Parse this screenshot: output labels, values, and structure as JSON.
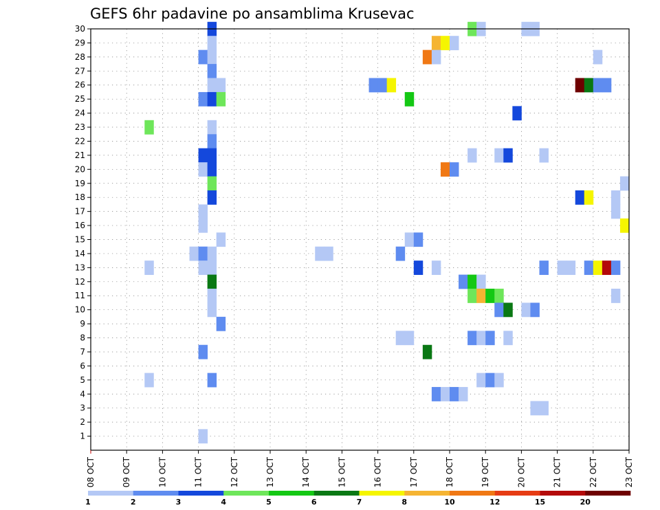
{
  "chart_data": {
    "type": "heatmap",
    "title": "GEFS 6hr padavine po ansamblima Krusevac",
    "x_start": "2014-10-08",
    "x_end": "2014-10-23",
    "x_tick_labels": [
      "08 OCT",
      "09 OCT",
      "10 OCT",
      "11 OCT",
      "12 OCT",
      "13 OCT",
      "14 OCT",
      "15 OCT",
      "16 OCT",
      "17 OCT",
      "18 OCT",
      "19 OCT",
      "20 OCT",
      "21 OCT",
      "22 OCT",
      "23 OCT"
    ],
    "y_tick_labels": [
      "1",
      "2",
      "3",
      "4",
      "5",
      "6",
      "7",
      "8",
      "9",
      "10",
      "11",
      "12",
      "13",
      "14",
      "15",
      "16",
      "17",
      "18",
      "19",
      "20",
      "21",
      "22",
      "23",
      "24",
      "25",
      "26",
      "27",
      "28",
      "29",
      "30"
    ],
    "ylim": [
      0,
      30
    ],
    "grid": true,
    "colorbar": {
      "labels": [
        "1",
        "2",
        "3",
        "4",
        "5",
        "6",
        "7",
        "8",
        "10",
        "12",
        "15",
        "20"
      ],
      "colors": [
        "#b4c8f5",
        "#5f8cf0",
        "#1448dc",
        "#6ee65a",
        "#14c814",
        "#0a7814",
        "#f5f500",
        "#f5b432",
        "#f07814",
        "#e63c14",
        "#b40a0a",
        "#6e0000"
      ]
    },
    "cells": [
      {
        "member": 30,
        "date": "11.06",
        "value": 3
      },
      {
        "member": 30,
        "date": "18.12",
        "value": 4
      },
      {
        "member": 30,
        "date": "18.18",
        "value": 1
      },
      {
        "member": 30,
        "date": "20.00",
        "value": 1
      },
      {
        "member": 30,
        "date": "20.06",
        "value": 1
      },
      {
        "member": 29,
        "date": "11.06",
        "value": 1
      },
      {
        "member": 29,
        "date": "17.12",
        "value": 8
      },
      {
        "member": 29,
        "date": "17.18",
        "value": 7
      },
      {
        "member": 29,
        "date": "18.00",
        "value": 1
      },
      {
        "member": 28,
        "date": "11.00",
        "value": 2
      },
      {
        "member": 28,
        "date": "11.06",
        "value": 1
      },
      {
        "member": 28,
        "date": "17.06",
        "value": 10
      },
      {
        "member": 28,
        "date": "17.12",
        "value": 1
      },
      {
        "member": 28,
        "date": "22.00",
        "value": 1
      },
      {
        "member": 27,
        "date": "11.06",
        "value": 2
      },
      {
        "member": 26,
        "date": "11.06",
        "value": 1
      },
      {
        "member": 26,
        "date": "11.12",
        "value": 1
      },
      {
        "member": 26,
        "date": "15.18",
        "value": 2
      },
      {
        "member": 26,
        "date": "16.00",
        "value": 2
      },
      {
        "member": 26,
        "date": "16.06",
        "value": 7
      },
      {
        "member": 26,
        "date": "21.12",
        "value": 20
      },
      {
        "member": 26,
        "date": "21.18",
        "value": 6
      },
      {
        "member": 26,
        "date": "22.00",
        "value": 2
      },
      {
        "member": 26,
        "date": "22.06",
        "value": 2
      },
      {
        "member": 25,
        "date": "11.00",
        "value": 2
      },
      {
        "member": 25,
        "date": "11.06",
        "value": 3
      },
      {
        "member": 25,
        "date": "11.12",
        "value": 4
      },
      {
        "member": 25,
        "date": "16.18",
        "value": 5
      },
      {
        "member": 24,
        "date": "19.18",
        "value": 3
      },
      {
        "member": 23,
        "date": "09.12",
        "value": 4
      },
      {
        "member": 23,
        "date": "11.06",
        "value": 1
      },
      {
        "member": 22,
        "date": "11.06",
        "value": 2
      },
      {
        "member": 21,
        "date": "11.00",
        "value": 3
      },
      {
        "member": 21,
        "date": "11.06",
        "value": 3
      },
      {
        "member": 21,
        "date": "18.12",
        "value": 1
      },
      {
        "member": 21,
        "date": "19.06",
        "value": 1
      },
      {
        "member": 21,
        "date": "19.12",
        "value": 3
      },
      {
        "member": 21,
        "date": "20.12",
        "value": 1
      },
      {
        "member": 20,
        "date": "11.00",
        "value": 1
      },
      {
        "member": 20,
        "date": "11.06",
        "value": 3
      },
      {
        "member": 20,
        "date": "17.18",
        "value": 10
      },
      {
        "member": 20,
        "date": "18.00",
        "value": 2
      },
      {
        "member": 19,
        "date": "11.06",
        "value": 4
      },
      {
        "member": 19,
        "date": "22.18",
        "value": 1
      },
      {
        "member": 18,
        "date": "11.06",
        "value": 3
      },
      {
        "member": 18,
        "date": "21.12",
        "value": 3
      },
      {
        "member": 18,
        "date": "21.18",
        "value": 7
      },
      {
        "member": 18,
        "date": "22.12",
        "value": 1
      },
      {
        "member": 17,
        "date": "11.00",
        "value": 1
      },
      {
        "member": 17,
        "date": "22.12",
        "value": 1
      },
      {
        "member": 16,
        "date": "11.00",
        "value": 1
      },
      {
        "member": 16,
        "date": "22.18",
        "value": 7
      },
      {
        "member": 15,
        "date": "11.12",
        "value": 1
      },
      {
        "member": 15,
        "date": "16.18",
        "value": 1
      },
      {
        "member": 15,
        "date": "17.00",
        "value": 2
      },
      {
        "member": 14,
        "date": "10.18",
        "value": 1
      },
      {
        "member": 14,
        "date": "11.00",
        "value": 2
      },
      {
        "member": 14,
        "date": "11.06",
        "value": 1
      },
      {
        "member": 14,
        "date": "14.06",
        "value": 1
      },
      {
        "member": 14,
        "date": "14.12",
        "value": 1
      },
      {
        "member": 14,
        "date": "16.12",
        "value": 2
      },
      {
        "member": 13,
        "date": "09.12",
        "value": 1
      },
      {
        "member": 13,
        "date": "11.00",
        "value": 1
      },
      {
        "member": 13,
        "date": "11.06",
        "value": 1
      },
      {
        "member": 13,
        "date": "17.00",
        "value": 3
      },
      {
        "member": 13,
        "date": "17.12",
        "value": 1
      },
      {
        "member": 13,
        "date": "20.12",
        "value": 2
      },
      {
        "member": 13,
        "date": "21.00",
        "value": 1
      },
      {
        "member": 13,
        "date": "21.06",
        "value": 1
      },
      {
        "member": 13,
        "date": "21.18",
        "value": 2
      },
      {
        "member": 13,
        "date": "22.00",
        "value": 7
      },
      {
        "member": 13,
        "date": "22.06",
        "value": 15
      },
      {
        "member": 13,
        "date": "22.12",
        "value": 2
      },
      {
        "member": 12,
        "date": "11.06",
        "value": 6
      },
      {
        "member": 12,
        "date": "18.06",
        "value": 2
      },
      {
        "member": 12,
        "date": "18.12",
        "value": 5
      },
      {
        "member": 12,
        "date": "18.18",
        "value": 1
      },
      {
        "member": 11,
        "date": "11.06",
        "value": 1
      },
      {
        "member": 11,
        "date": "18.12",
        "value": 4
      },
      {
        "member": 11,
        "date": "18.18",
        "value": 8
      },
      {
        "member": 11,
        "date": "19.00",
        "value": 5
      },
      {
        "member": 11,
        "date": "19.06",
        "value": 4
      },
      {
        "member": 11,
        "date": "22.12",
        "value": 1
      },
      {
        "member": 10,
        "date": "11.06",
        "value": 1
      },
      {
        "member": 10,
        "date": "19.06",
        "value": 2
      },
      {
        "member": 10,
        "date": "19.12",
        "value": 6
      },
      {
        "member": 10,
        "date": "20.00",
        "value": 1
      },
      {
        "member": 10,
        "date": "20.06",
        "value": 2
      },
      {
        "member": 9,
        "date": "11.12",
        "value": 2
      },
      {
        "member": 8,
        "date": "16.12",
        "value": 1
      },
      {
        "member": 8,
        "date": "16.18",
        "value": 1
      },
      {
        "member": 8,
        "date": "18.12",
        "value": 2
      },
      {
        "member": 8,
        "date": "18.18",
        "value": 1
      },
      {
        "member": 8,
        "date": "19.00",
        "value": 2
      },
      {
        "member": 8,
        "date": "19.12",
        "value": 1
      },
      {
        "member": 7,
        "date": "11.00",
        "value": 2
      },
      {
        "member": 7,
        "date": "17.06",
        "value": 6
      },
      {
        "member": 5,
        "date": "09.12",
        "value": 1
      },
      {
        "member": 5,
        "date": "11.06",
        "value": 2
      },
      {
        "member": 5,
        "date": "18.18",
        "value": 1
      },
      {
        "member": 5,
        "date": "19.00",
        "value": 2
      },
      {
        "member": 5,
        "date": "19.06",
        "value": 1
      },
      {
        "member": 4,
        "date": "17.12",
        "value": 2
      },
      {
        "member": 4,
        "date": "17.18",
        "value": 1
      },
      {
        "member": 4,
        "date": "18.00",
        "value": 2
      },
      {
        "member": 4,
        "date": "18.06",
        "value": 1
      },
      {
        "member": 3,
        "date": "20.06",
        "value": 1
      },
      {
        "member": 3,
        "date": "20.12",
        "value": 1
      },
      {
        "member": 1,
        "date": "11.00",
        "value": 1
      }
    ]
  }
}
